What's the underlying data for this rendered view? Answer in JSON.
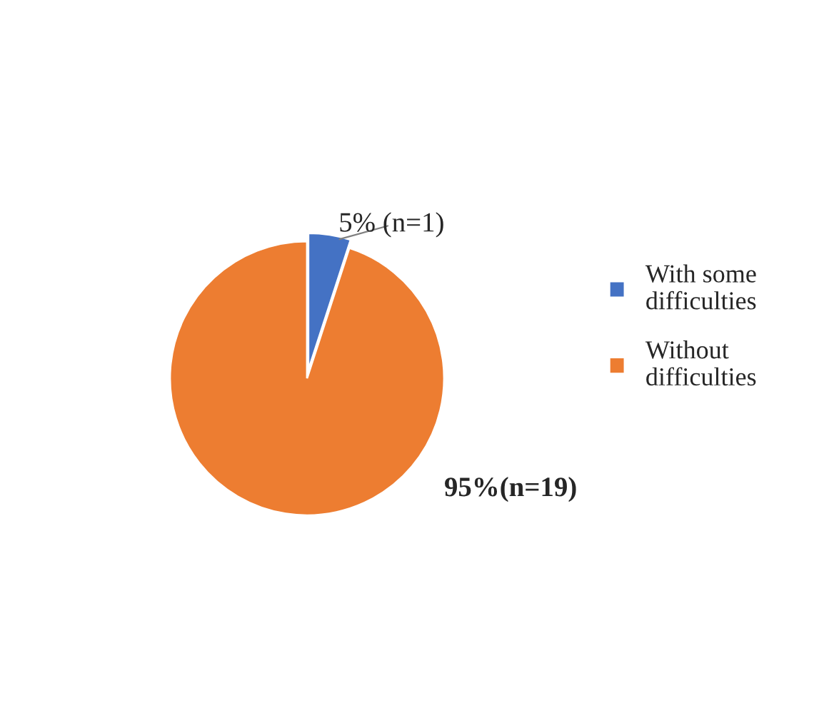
{
  "chart_data": {
    "type": "pie",
    "categories": [
      "With some difficulties",
      "Without difficulties"
    ],
    "values": [
      5,
      95
    ],
    "colors": [
      "#4472c4",
      "#ed7d31"
    ],
    "value_labels": [
      "5% (n=1)",
      "95%(n=19)"
    ],
    "legend": "right"
  }
}
